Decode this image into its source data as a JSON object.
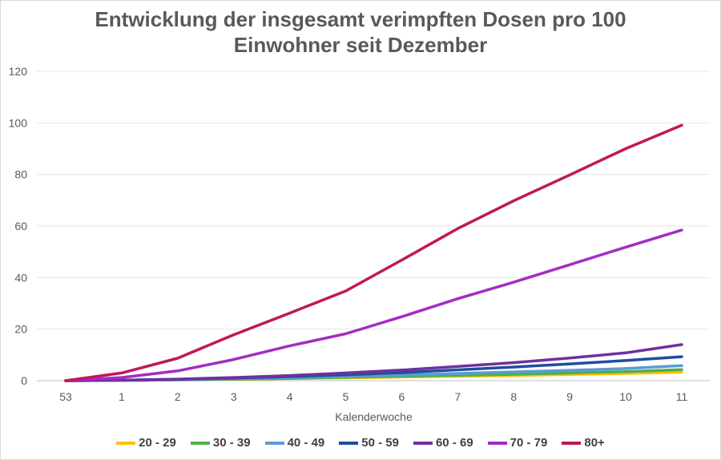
{
  "chart_data": {
    "type": "line",
    "title_line1": "Entwicklung der insgesamt verimpften Dosen pro 100",
    "title_line2": "Einwohner seit Dezember",
    "xlabel": "Kalenderwoche",
    "ylabel": "",
    "categories": [
      "53",
      "1",
      "2",
      "3",
      "4",
      "5",
      "6",
      "7",
      "8",
      "9",
      "10",
      "11"
    ],
    "ylim": [
      0,
      120
    ],
    "yticks": [
      0,
      20,
      40,
      60,
      80,
      100,
      120
    ],
    "grid": true,
    "legend_position": "bottom",
    "series": [
      {
        "name": "20 - 29",
        "color": "#ffc000",
        "values": [
          0,
          0.1,
          0.3,
          0.5,
          0.8,
          1.1,
          1.4,
          1.7,
          2.0,
          2.4,
          2.8,
          3.3
        ]
      },
      {
        "name": "30 - 39",
        "color": "#4caf50",
        "values": [
          0,
          0.1,
          0.3,
          0.6,
          0.9,
          1.3,
          1.7,
          2.1,
          2.5,
          3.0,
          3.5,
          4.3
        ]
      },
      {
        "name": "40 - 49",
        "color": "#5b9bd5",
        "values": [
          0,
          0.1,
          0.4,
          0.8,
          1.2,
          1.7,
          2.2,
          2.8,
          3.4,
          4.0,
          4.7,
          5.8
        ]
      },
      {
        "name": "50 - 59",
        "color": "#1f4e9c",
        "values": [
          0,
          0.2,
          0.5,
          1.0,
          1.6,
          2.3,
          3.1,
          4.2,
          5.3,
          6.5,
          7.8,
          9.3
        ]
      },
      {
        "name": "60 - 69",
        "color": "#7030a0",
        "values": [
          0,
          0.2,
          0.6,
          1.2,
          2.0,
          3.0,
          4.1,
          5.5,
          7.0,
          8.8,
          10.8,
          14.0
        ]
      },
      {
        "name": "70 - 79",
        "color": "#a32cc4",
        "values": [
          0,
          1.2,
          3.8,
          8.2,
          13.5,
          18.2,
          24.8,
          31.8,
          38.2,
          45.0,
          51.8,
          58.4
        ]
      },
      {
        "name": "80+",
        "color": "#c0185a",
        "values": [
          0,
          3.0,
          8.7,
          17.8,
          26.2,
          34.8,
          46.8,
          59.0,
          69.8,
          79.8,
          90.0,
          99.1
        ]
      }
    ]
  }
}
